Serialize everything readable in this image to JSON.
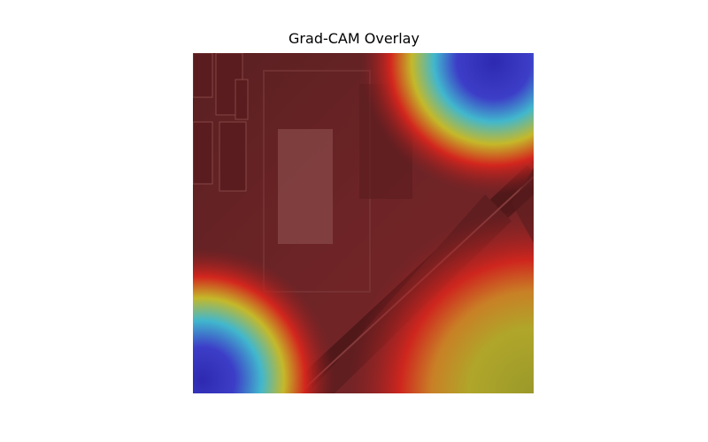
{
  "figure": {
    "title": "Grad-CAM Overlay",
    "colormap": "jet",
    "colors": {
      "base": "#6e2426",
      "hot": "#8f1f24",
      "warm": "#d8261d",
      "mid_yellow": "#c9c02a",
      "olive": "#9ea62b",
      "cyan": "#3fbfd6",
      "blue": "#3a3fd0",
      "deep_blue": "#2a2ab8"
    }
  }
}
